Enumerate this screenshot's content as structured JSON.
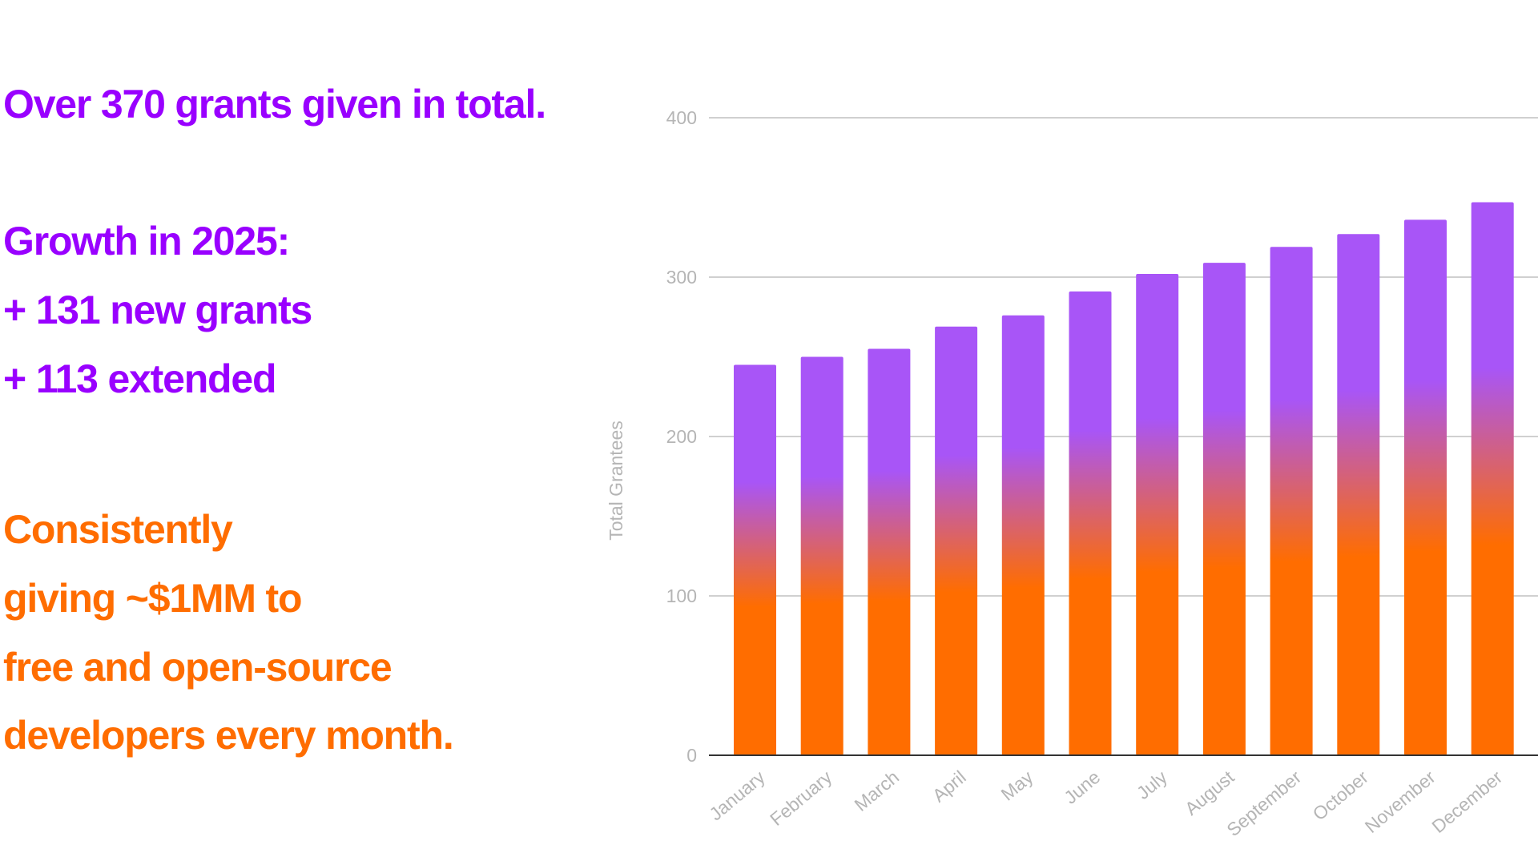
{
  "text_panel": {
    "headline": "Over 370 grants given in total.",
    "growth_title": "Growth in 2025:",
    "growth_new": "+ 131 new grants",
    "growth_extended": "+ 113 extended",
    "consistency_lines": [
      "Consistently",
      "giving ~$1MM to",
      "free and open-source",
      "developers every month."
    ]
  },
  "colors": {
    "purple_text": "#9900ff",
    "orange_text": "#ff6d00",
    "bar_top": "#a855f7",
    "bar_bottom": "#ff6d00",
    "gridline": "#d0d0d0",
    "baseline": "#333333"
  },
  "chart_data": {
    "type": "bar",
    "title": "",
    "xlabel": "",
    "ylabel": "Total Grantees",
    "categories": [
      "January",
      "February",
      "March",
      "April",
      "May",
      "June",
      "July",
      "August",
      "September",
      "October",
      "November",
      "December"
    ],
    "values": [
      245,
      250,
      255,
      269,
      276,
      291,
      302,
      309,
      319,
      327,
      336,
      347
    ],
    "ylim": [
      0,
      400
    ],
    "yticks": [
      0,
      100,
      200,
      300,
      400
    ],
    "grid": true,
    "bar_fill": "vertical gradient purple to orange"
  }
}
